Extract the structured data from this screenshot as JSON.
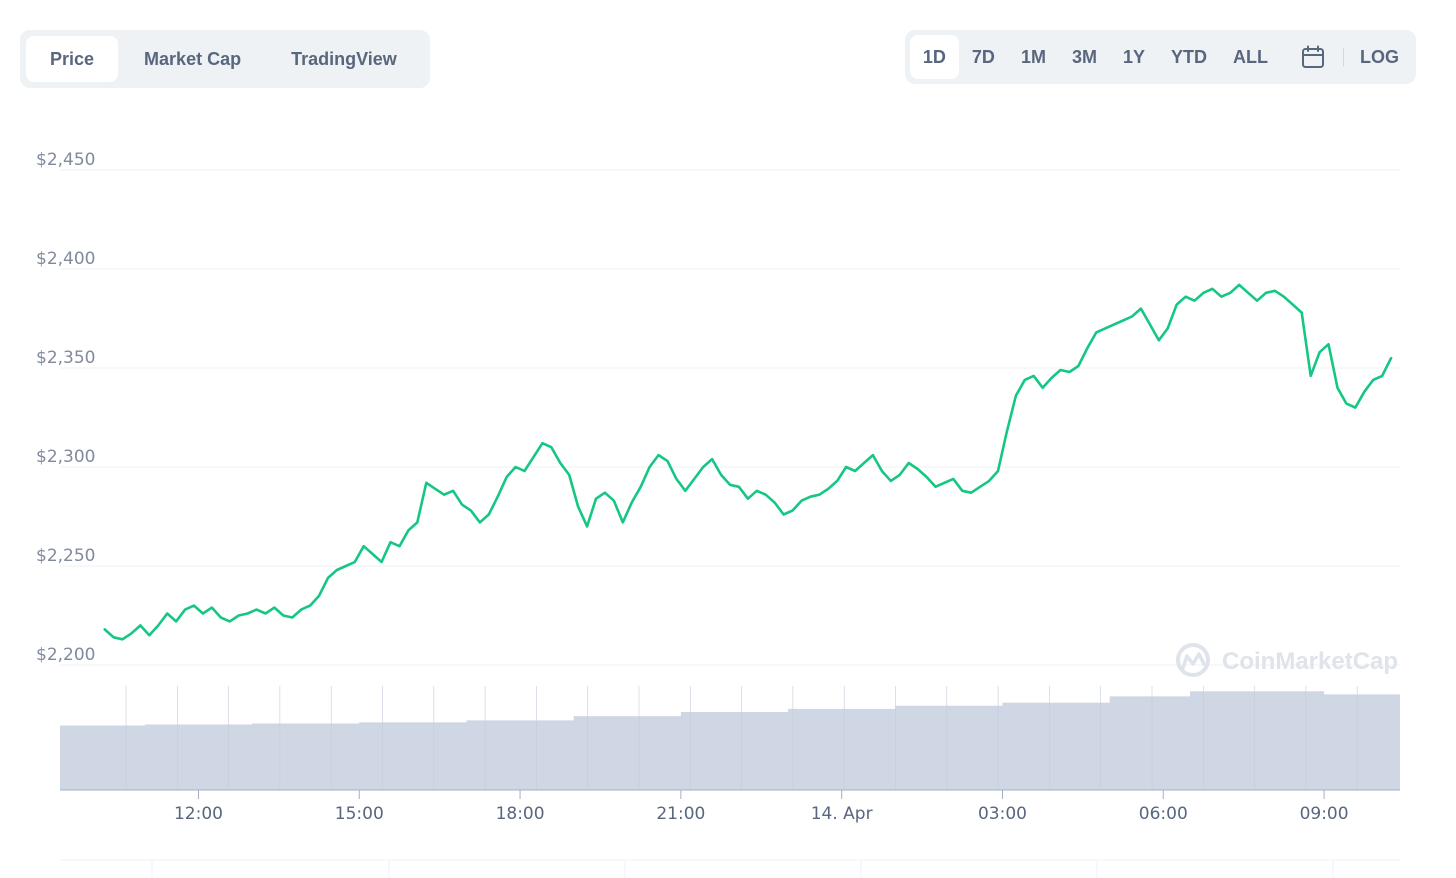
{
  "view_tabs": [
    "Price",
    "Market Cap",
    "TradingView"
  ],
  "active_view": "Price",
  "range_tabs": [
    "1D",
    "7D",
    "1M",
    "3M",
    "1Y",
    "YTD",
    "ALL"
  ],
  "active_range": "1D",
  "log_label": "LOG",
  "icons": {
    "calendar": "calendar-icon",
    "watermark": "coinmarketcap-logo-icon"
  },
  "watermark_text": "CoinMarketCap",
  "colors": {
    "line": "#16c784",
    "volume": "#cfd6e4",
    "grid": "#eff2f5",
    "accent": "#58667e"
  },
  "chart_data": {
    "type": "line",
    "title": "",
    "xlabel": "",
    "ylabel": "",
    "ylim": [
      2180,
      2480
    ],
    "y_ticks": [
      2200,
      2250,
      2300,
      2350,
      2400,
      2450
    ],
    "y_tick_labels": [
      "$2,200",
      "$2,250",
      "$2,300",
      "$2,350",
      "$2,400",
      "$2,450"
    ],
    "x_range": [
      "13 Apr 09:25",
      "14 Apr 10:25"
    ],
    "x_ticks": [
      "13 Apr 12:00",
      "13 Apr 15:00",
      "13 Apr 18:00",
      "13 Apr 21:00",
      "14 Apr 00:00",
      "14 Apr 03:00",
      "14 Apr 06:00",
      "14 Apr 09:00"
    ],
    "x_tick_labels": [
      "12:00",
      "15:00",
      "18:00",
      "21:00",
      "14. Apr",
      "03:00",
      "06:00",
      "09:00"
    ],
    "grid": true,
    "series": [
      {
        "values": [
          [
            "13 Apr 10:15",
            2218
          ],
          [
            "13 Apr 10:25",
            2214
          ],
          [
            "13 Apr 10:35",
            2213
          ],
          [
            "13 Apr 10:45",
            2216
          ],
          [
            "13 Apr 10:55",
            2220
          ],
          [
            "13 Apr 11:05",
            2215
          ],
          [
            "13 Apr 11:15",
            2220
          ],
          [
            "13 Apr 11:25",
            2226
          ],
          [
            "13 Apr 11:35",
            2222
          ],
          [
            "13 Apr 11:45",
            2228
          ],
          [
            "13 Apr 11:55",
            2230
          ],
          [
            "13 Apr 12:05",
            2226
          ],
          [
            "13 Apr 12:15",
            2229
          ],
          [
            "13 Apr 12:25",
            2224
          ],
          [
            "13 Apr 12:35",
            2222
          ],
          [
            "13 Apr 12:45",
            2225
          ],
          [
            "13 Apr 12:55",
            2226
          ],
          [
            "13 Apr 13:05",
            2228
          ],
          [
            "13 Apr 13:15",
            2226
          ],
          [
            "13 Apr 13:25",
            2229
          ],
          [
            "13 Apr 13:35",
            2225
          ],
          [
            "13 Apr 13:45",
            2224
          ],
          [
            "13 Apr 13:55",
            2228
          ],
          [
            "13 Apr 14:05",
            2230
          ],
          [
            "13 Apr 14:15",
            2235
          ],
          [
            "13 Apr 14:25",
            2244
          ],
          [
            "13 Apr 14:35",
            2248
          ],
          [
            "13 Apr 14:45",
            2250
          ],
          [
            "13 Apr 14:55",
            2252
          ],
          [
            "13 Apr 15:05",
            2260
          ],
          [
            "13 Apr 15:15",
            2256
          ],
          [
            "13 Apr 15:25",
            2252
          ],
          [
            "13 Apr 15:35",
            2262
          ],
          [
            "13 Apr 15:45",
            2260
          ],
          [
            "13 Apr 15:55",
            2268
          ],
          [
            "13 Apr 16:05",
            2272
          ],
          [
            "13 Apr 16:15",
            2292
          ],
          [
            "13 Apr 16:25",
            2289
          ],
          [
            "13 Apr 16:35",
            2286
          ],
          [
            "13 Apr 16:45",
            2288
          ],
          [
            "13 Apr 16:55",
            2281
          ],
          [
            "13 Apr 17:05",
            2278
          ],
          [
            "13 Apr 17:15",
            2272
          ],
          [
            "13 Apr 17:25",
            2276
          ],
          [
            "13 Apr 17:35",
            2285
          ],
          [
            "13 Apr 17:45",
            2295
          ],
          [
            "13 Apr 17:55",
            2300
          ],
          [
            "13 Apr 18:05",
            2298
          ],
          [
            "13 Apr 18:15",
            2305
          ],
          [
            "13 Apr 18:25",
            2312
          ],
          [
            "13 Apr 18:35",
            2310
          ],
          [
            "13 Apr 18:45",
            2302
          ],
          [
            "13 Apr 18:55",
            2296
          ],
          [
            "13 Apr 19:05",
            2280
          ],
          [
            "13 Apr 19:15",
            2270
          ],
          [
            "13 Apr 19:25",
            2284
          ],
          [
            "13 Apr 19:35",
            2287
          ],
          [
            "13 Apr 19:45",
            2283
          ],
          [
            "13 Apr 19:55",
            2272
          ],
          [
            "13 Apr 20:05",
            2282
          ],
          [
            "13 Apr 20:15",
            2290
          ],
          [
            "13 Apr 20:25",
            2300
          ],
          [
            "13 Apr 20:35",
            2306
          ],
          [
            "13 Apr 20:45",
            2303
          ],
          [
            "13 Apr 20:55",
            2294
          ],
          [
            "13 Apr 21:05",
            2288
          ],
          [
            "13 Apr 21:15",
            2294
          ],
          [
            "13 Apr 21:25",
            2300
          ],
          [
            "13 Apr 21:35",
            2304
          ],
          [
            "13 Apr 21:45",
            2296
          ],
          [
            "13 Apr 21:55",
            2291
          ],
          [
            "13 Apr 22:05",
            2290
          ],
          [
            "13 Apr 22:15",
            2284
          ],
          [
            "13 Apr 22:25",
            2288
          ],
          [
            "13 Apr 22:35",
            2286
          ],
          [
            "13 Apr 22:45",
            2282
          ],
          [
            "13 Apr 22:55",
            2276
          ],
          [
            "13 Apr 23:05",
            2278
          ],
          [
            "13 Apr 23:15",
            2283
          ],
          [
            "13 Apr 23:25",
            2285
          ],
          [
            "13 Apr 23:35",
            2286
          ],
          [
            "13 Apr 23:45",
            2289
          ],
          [
            "13 Apr 23:55",
            2293
          ],
          [
            "14 Apr 00:05",
            2300
          ],
          [
            "14 Apr 00:15",
            2298
          ],
          [
            "14 Apr 00:25",
            2302
          ],
          [
            "14 Apr 00:35",
            2306
          ],
          [
            "14 Apr 00:45",
            2298
          ],
          [
            "14 Apr 00:55",
            2293
          ],
          [
            "14 Apr 01:05",
            2296
          ],
          [
            "14 Apr 01:15",
            2302
          ],
          [
            "14 Apr 01:25",
            2299
          ],
          [
            "14 Apr 01:35",
            2295
          ],
          [
            "14 Apr 01:45",
            2290
          ],
          [
            "14 Apr 01:55",
            2292
          ],
          [
            "14 Apr 02:05",
            2294
          ],
          [
            "14 Apr 02:15",
            2288
          ],
          [
            "14 Apr 02:25",
            2287
          ],
          [
            "14 Apr 02:35",
            2290
          ],
          [
            "14 Apr 02:45",
            2293
          ],
          [
            "14 Apr 02:55",
            2298
          ],
          [
            "14 Apr 03:05",
            2318
          ],
          [
            "14 Apr 03:15",
            2336
          ],
          [
            "14 Apr 03:25",
            2344
          ],
          [
            "14 Apr 03:35",
            2346
          ],
          [
            "14 Apr 03:45",
            2340
          ],
          [
            "14 Apr 03:55",
            2345
          ],
          [
            "14 Apr 04:05",
            2349
          ],
          [
            "14 Apr 04:15",
            2348
          ],
          [
            "14 Apr 04:25",
            2351
          ],
          [
            "14 Apr 04:35",
            2360
          ],
          [
            "14 Apr 04:45",
            2368
          ],
          [
            "14 Apr 04:55",
            2370
          ],
          [
            "14 Apr 05:05",
            2372
          ],
          [
            "14 Apr 05:15",
            2374
          ],
          [
            "14 Apr 05:25",
            2376
          ],
          [
            "14 Apr 05:35",
            2380
          ],
          [
            "14 Apr 05:45",
            2372
          ],
          [
            "14 Apr 05:55",
            2364
          ],
          [
            "14 Apr 06:05",
            2370
          ],
          [
            "14 Apr 06:15",
            2382
          ],
          [
            "14 Apr 06:25",
            2386
          ],
          [
            "14 Apr 06:35",
            2384
          ],
          [
            "14 Apr 06:45",
            2388
          ],
          [
            "14 Apr 06:55",
            2390
          ],
          [
            "14 Apr 07:05",
            2386
          ],
          [
            "14 Apr 07:15",
            2388
          ],
          [
            "14 Apr 07:25",
            2392
          ],
          [
            "14 Apr 07:35",
            2388
          ],
          [
            "14 Apr 07:45",
            2384
          ],
          [
            "14 Apr 07:55",
            2388
          ],
          [
            "14 Apr 08:05",
            2389
          ],
          [
            "14 Apr 08:15",
            2386
          ],
          [
            "14 Apr 08:25",
            2382
          ],
          [
            "14 Apr 08:35",
            2378
          ],
          [
            "14 Apr 08:45",
            2346
          ],
          [
            "14 Apr 08:55",
            2358
          ],
          [
            "14 Apr 09:05",
            2362
          ],
          [
            "14 Apr 09:15",
            2340
          ],
          [
            "14 Apr 09:25",
            2332
          ],
          [
            "14 Apr 09:35",
            2330
          ],
          [
            "14 Apr 09:45",
            2338
          ],
          [
            "14 Apr 09:55",
            2344
          ],
          [
            "14 Apr 10:05",
            2346
          ],
          [
            "14 Apr 10:15",
            2355
          ]
        ]
      }
    ],
    "volume": [
      [
        "13 Apr 09:25",
        0.62
      ],
      [
        "13 Apr 11:00",
        0.63
      ],
      [
        "13 Apr 13:00",
        0.64
      ],
      [
        "13 Apr 15:00",
        0.65
      ],
      [
        "13 Apr 17:00",
        0.67
      ],
      [
        "13 Apr 19:00",
        0.71
      ],
      [
        "13 Apr 21:00",
        0.75
      ],
      [
        "13 Apr 23:00",
        0.78
      ],
      [
        "14 Apr 01:00",
        0.81
      ],
      [
        "14 Apr 03:00",
        0.84
      ],
      [
        "14 Apr 05:00",
        0.9
      ],
      [
        "14 Apr 06:30",
        0.95
      ],
      [
        "14 Apr 08:00",
        0.95
      ],
      [
        "14 Apr 09:00",
        0.92
      ],
      [
        "14 Apr 10:25",
        0.93
      ]
    ]
  }
}
